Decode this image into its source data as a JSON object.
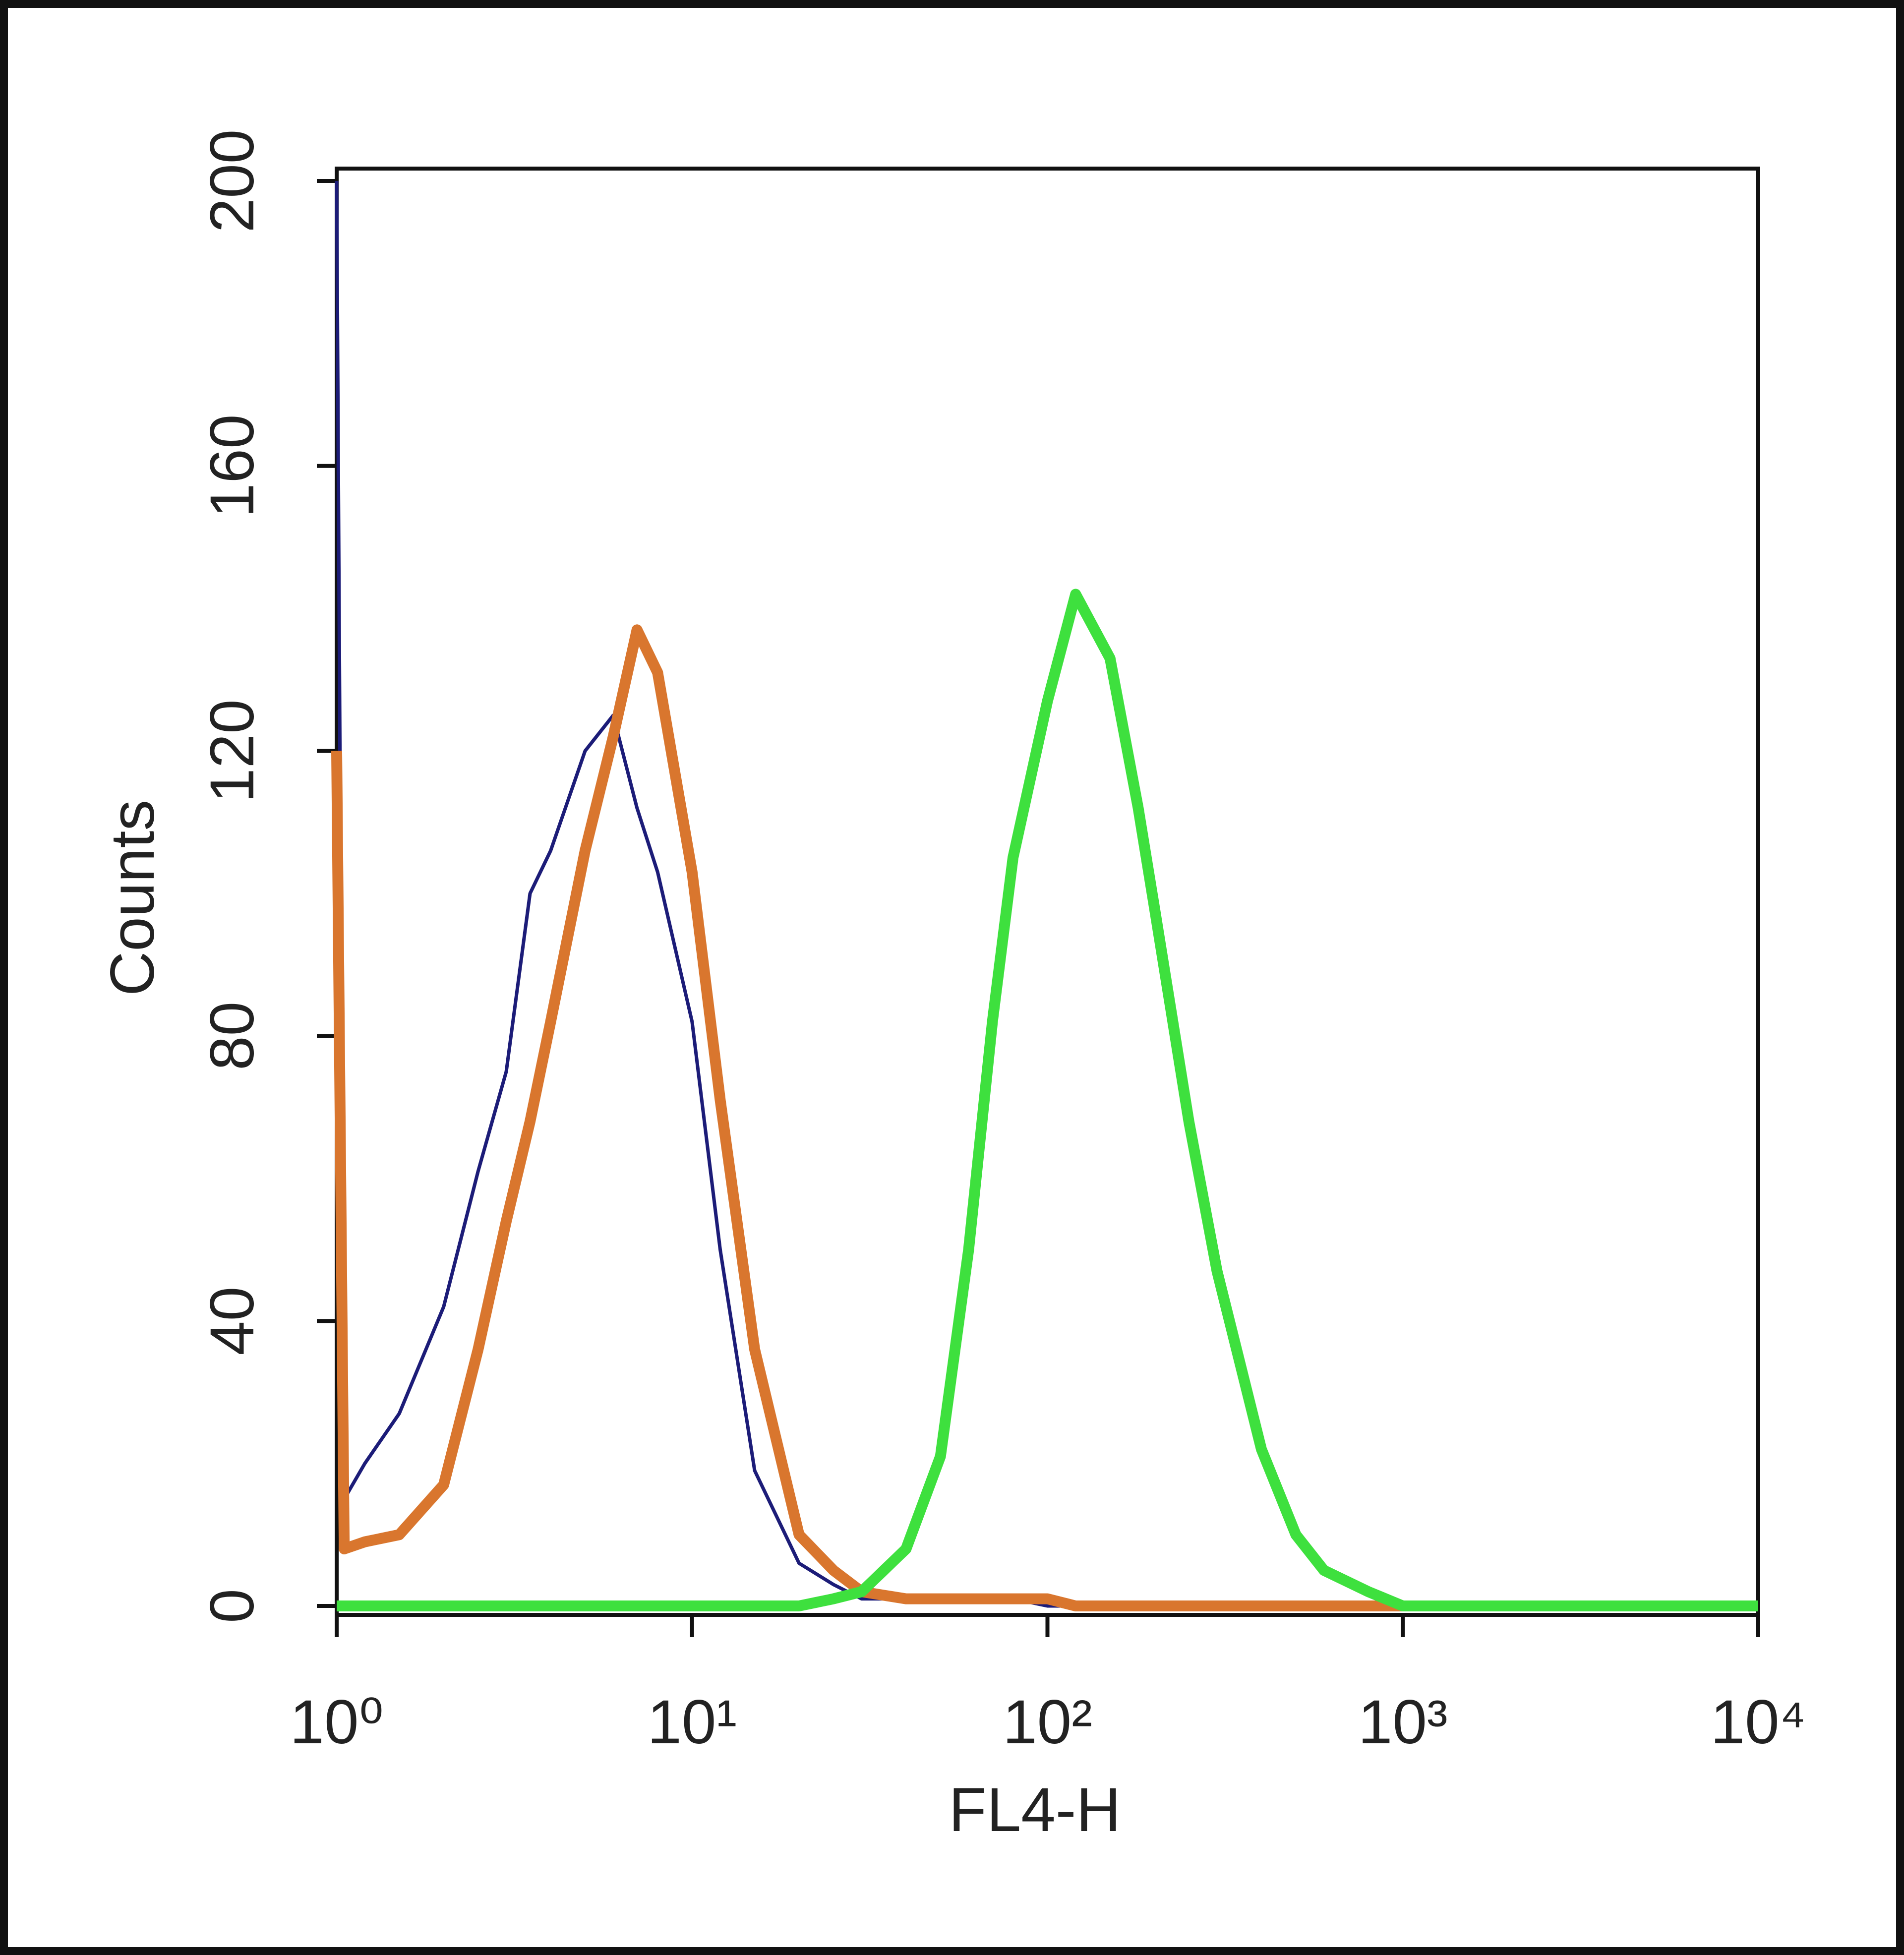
{
  "chart_data": {
    "type": "line",
    "xlabel": "FL4-H",
    "ylabel": "Counts",
    "xscale": "log",
    "x": [
      1,
      1.05,
      1.2,
      1.5,
      2,
      2.5,
      3,
      3.5,
      4,
      5,
      6,
      7,
      8,
      10,
      12,
      15,
      20,
      25,
      30,
      40,
      50,
      60,
      70,
      80,
      100,
      120,
      150,
      180,
      200,
      250,
      300,
      400,
      500,
      600,
      800,
      1000,
      10000
    ],
    "series": [
      {
        "color": "#1c1c78",
        "values": [
          200,
          15,
          20,
          27,
          42,
          61,
          75,
          100,
          106,
          120,
          125,
          112,
          103,
          82,
          50,
          19,
          6,
          3,
          1,
          1,
          1,
          1,
          1,
          1,
          0,
          0,
          0,
          0,
          0,
          0,
          0,
          0,
          0,
          0,
          0,
          0,
          0
        ]
      },
      {
        "color": "#d9762e",
        "values": [
          120,
          8,
          9,
          10,
          17,
          36,
          54,
          68,
          82,
          106,
          122,
          137,
          131,
          103,
          71,
          36,
          10,
          5,
          2,
          1,
          1,
          1,
          1,
          1,
          1,
          0,
          0,
          0,
          0,
          0,
          0,
          0,
          0,
          0,
          0,
          0,
          0
        ]
      },
      {
        "color": "#3ee03e",
        "values": [
          0,
          0,
          0,
          0,
          0,
          0,
          0,
          0,
          0,
          0,
          0,
          0,
          0,
          0,
          0,
          0,
          0,
          1,
          2,
          8,
          21,
          50,
          82,
          105,
          127,
          142,
          133,
          112,
          98,
          68,
          47,
          22,
          10,
          5,
          2,
          0,
          0
        ]
      }
    ],
    "xlim": [
      1,
      10000
    ],
    "xticks": [
      {
        "value": 1,
        "label": "10⁰"
      },
      {
        "value": 10,
        "label": "10¹"
      },
      {
        "value": 100,
        "label": "10²"
      },
      {
        "value": 1000,
        "label": "10³"
      },
      {
        "value": 10000,
        "label": "10⁴"
      }
    ],
    "ylim": [
      0,
      200
    ],
    "yticks": [
      0,
      40,
      80,
      120,
      160,
      200
    ]
  }
}
